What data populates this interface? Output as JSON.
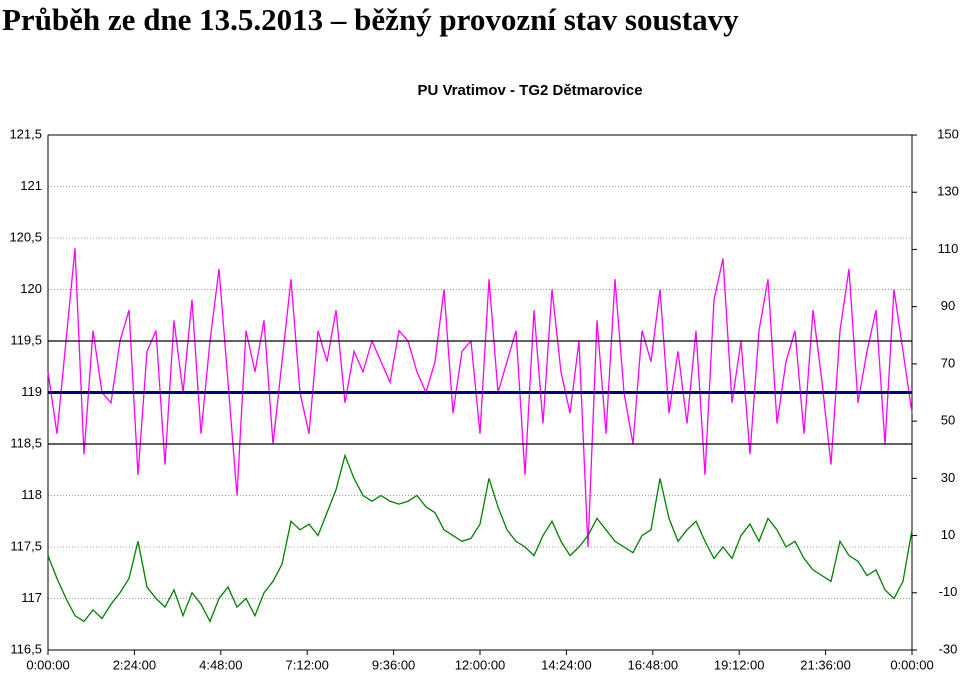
{
  "heading": "Průběh ze dne 13.5.2013 – běžný provozní stav soustavy",
  "chart_data": {
    "type": "line",
    "title": "PU Vratimov - TG2 Dětmarovice",
    "xlim": [
      0,
      24
    ],
    "xticks": [
      {
        "value": 0,
        "label": "0:00:00"
      },
      {
        "value": 2.4,
        "label": "2:24:00"
      },
      {
        "value": 4.8,
        "label": "4:48:00"
      },
      {
        "value": 7.2,
        "label": "7:12:00"
      },
      {
        "value": 9.6,
        "label": "9:36:00"
      },
      {
        "value": 12,
        "label": "12:00:00"
      },
      {
        "value": 14.4,
        "label": "14:24:00"
      },
      {
        "value": 16.8,
        "label": "16:48:00"
      },
      {
        "value": 19.2,
        "label": "19:12:00"
      },
      {
        "value": 21.6,
        "label": "21:36:00"
      },
      {
        "value": 24,
        "label": "0:00:00"
      }
    ],
    "ylim": [
      116.5,
      121.5
    ],
    "yticks": [
      {
        "value": 116.5,
        "label": "116,5"
      },
      {
        "value": 117,
        "label": "117"
      },
      {
        "value": 117.5,
        "label": "117,5"
      },
      {
        "value": 118,
        "label": "118"
      },
      {
        "value": 118.5,
        "label": "118,5"
      },
      {
        "value": 119,
        "label": "119"
      },
      {
        "value": 119.5,
        "label": "119,5"
      },
      {
        "value": 120,
        "label": "120"
      },
      {
        "value": 120.5,
        "label": "120,5"
      },
      {
        "value": 121,
        "label": "121"
      },
      {
        "value": 121.5,
        "label": "121,5"
      }
    ],
    "y2lim": [
      -30,
      150
    ],
    "y2ticks": [
      -30,
      -10,
      10,
      30,
      50,
      70,
      90,
      110,
      130,
      150
    ],
    "grid": true,
    "reference_lines": [
      {
        "value": 119.5,
        "color": "#000000"
      },
      {
        "value": 119,
        "color": "#000080"
      },
      {
        "value": 118.5,
        "color": "#000000"
      }
    ],
    "x": [
      0,
      0.25,
      0.5,
      0.75,
      1,
      1.25,
      1.5,
      1.75,
      2,
      2.25,
      2.5,
      2.75,
      3,
      3.25,
      3.5,
      3.75,
      4,
      4.25,
      4.5,
      4.75,
      5,
      5.25,
      5.5,
      5.75,
      6,
      6.25,
      6.5,
      6.75,
      7,
      7.25,
      7.5,
      7.75,
      8,
      8.25,
      8.5,
      8.75,
      9,
      9.25,
      9.5,
      9.75,
      10,
      10.25,
      10.5,
      10.75,
      11,
      11.25,
      11.5,
      11.75,
      12,
      12.25,
      12.5,
      12.75,
      13,
      13.25,
      13.5,
      13.75,
      14,
      14.25,
      14.5,
      14.75,
      15,
      15.25,
      15.5,
      15.75,
      16,
      16.25,
      16.5,
      16.75,
      17,
      17.25,
      17.5,
      17.75,
      18,
      18.25,
      18.5,
      18.75,
      19,
      19.25,
      19.5,
      19.75,
      20,
      20.25,
      20.5,
      20.75,
      21,
      21.25,
      21.5,
      21.75,
      22,
      22.25,
      22.5,
      22.75,
      23,
      23.25,
      23.5,
      23.75,
      24
    ],
    "series": [
      {
        "color": "#ff00ff",
        "values": [
          119.2,
          118.6,
          119.5,
          120.4,
          118.4,
          119.6,
          119.0,
          118.9,
          119.5,
          119.8,
          118.2,
          119.4,
          119.6,
          118.3,
          119.7,
          119.0,
          119.9,
          118.6,
          119.5,
          120.2,
          119.1,
          118.0,
          119.6,
          119.2,
          119.7,
          118.5,
          119.3,
          120.1,
          119.0,
          118.6,
          119.6,
          119.3,
          119.8,
          118.9,
          119.4,
          119.2,
          119.5,
          119.3,
          119.1,
          119.6,
          119.5,
          119.2,
          119.0,
          119.3,
          120.0,
          118.8,
          119.4,
          119.5,
          118.6,
          120.1,
          119.0,
          119.3,
          119.6,
          118.2,
          119.8,
          118.7,
          120.0,
          119.2,
          118.8,
          119.5,
          117.5,
          119.7,
          118.6,
          120.1,
          119.0,
          118.5,
          119.6,
          119.3,
          120.0,
          118.8,
          119.4,
          118.7,
          119.6,
          118.2,
          119.9,
          120.3,
          118.9,
          119.5,
          118.4,
          119.6,
          120.1,
          118.7,
          119.3,
          119.6,
          118.6,
          119.8,
          119.1,
          118.3,
          119.6,
          120.2,
          118.9,
          119.4,
          119.8,
          118.5,
          120.0,
          119.4,
          118.8
        ]
      },
      {
        "color": "#008000",
        "axis": "y2",
        "values": [
          3,
          -5,
          -12,
          -18,
          -20,
          -16,
          -19,
          -14,
          -10,
          -5,
          8,
          -8,
          -12,
          -15,
          -9,
          -18,
          -10,
          -14,
          -20,
          -12,
          -8,
          -15,
          -12,
          -18,
          -10,
          -6,
          0,
          15,
          12,
          14,
          10,
          18,
          26,
          38,
          30,
          24,
          22,
          24,
          22,
          21,
          22,
          24,
          20,
          18,
          12,
          10,
          8,
          9,
          14,
          30,
          20,
          12,
          8,
          6,
          3,
          10,
          15,
          8,
          3,
          6,
          10,
          16,
          12,
          8,
          6,
          4,
          10,
          12,
          30,
          16,
          8,
          12,
          15,
          8,
          2,
          6,
          2,
          10,
          14,
          8,
          16,
          12,
          6,
          8,
          2,
          -2,
          -4,
          -6,
          8,
          3,
          1,
          -4,
          -2,
          -9,
          -12,
          -6,
          12
        ]
      }
    ]
  }
}
